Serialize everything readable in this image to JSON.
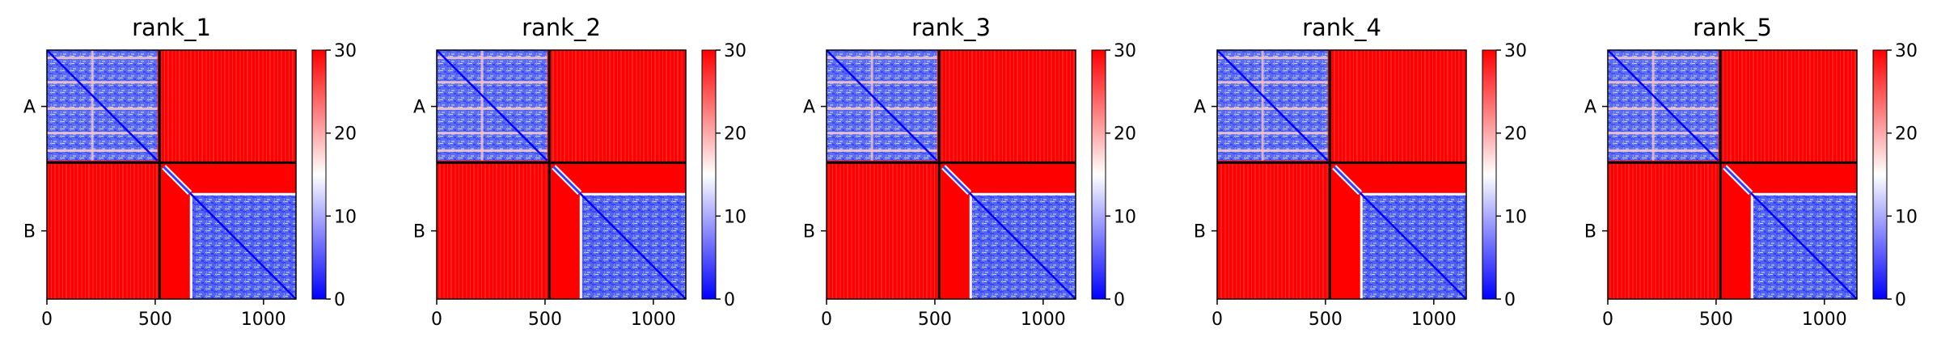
{
  "chart_data": [
    {
      "type": "heatmap",
      "title": "rank_1",
      "x_ticks": [
        0,
        500,
        1000
      ],
      "xlim": [
        0,
        1150
      ],
      "chain_ticks": [
        "A",
        "B"
      ],
      "chain_boundary": 520,
      "colorbar": {
        "range": [
          0,
          30
        ],
        "ticks": [
          0,
          10,
          20,
          30
        ],
        "colormap": [
          "#0000ff",
          "#ffffff",
          "#ff0000"
        ]
      }
    },
    {
      "type": "heatmap",
      "title": "rank_2",
      "x_ticks": [
        0,
        500,
        1000
      ],
      "xlim": [
        0,
        1150
      ],
      "chain_ticks": [
        "A",
        "B"
      ],
      "chain_boundary": 520,
      "colorbar": {
        "range": [
          0,
          30
        ],
        "ticks": [
          0,
          10,
          20,
          30
        ],
        "colormap": [
          "#0000ff",
          "#ffffff",
          "#ff0000"
        ]
      }
    },
    {
      "type": "heatmap",
      "title": "rank_3",
      "x_ticks": [
        0,
        500,
        1000
      ],
      "xlim": [
        0,
        1150
      ],
      "chain_ticks": [
        "A",
        "B"
      ],
      "chain_boundary": 520,
      "colorbar": {
        "range": [
          0,
          30
        ],
        "ticks": [
          0,
          10,
          20,
          30
        ],
        "colormap": [
          "#0000ff",
          "#ffffff",
          "#ff0000"
        ]
      }
    },
    {
      "type": "heatmap",
      "title": "rank_4",
      "x_ticks": [
        0,
        500,
        1000
      ],
      "xlim": [
        0,
        1150
      ],
      "chain_ticks": [
        "A",
        "B"
      ],
      "chain_boundary": 520,
      "colorbar": {
        "range": [
          0,
          30
        ],
        "ticks": [
          0,
          10,
          20,
          30
        ],
        "colormap": [
          "#0000ff",
          "#ffffff",
          "#ff0000"
        ]
      }
    },
    {
      "type": "heatmap",
      "title": "rank_5",
      "x_ticks": [
        0,
        500,
        1000
      ],
      "xlim": [
        0,
        1150
      ],
      "chain_ticks": [
        "A",
        "B"
      ],
      "chain_boundary": 520,
      "colorbar": {
        "range": [
          0,
          30
        ],
        "ticks": [
          0,
          10,
          20,
          30
        ],
        "colormap": [
          "#0000ff",
          "#ffffff",
          "#ff0000"
        ]
      }
    }
  ]
}
